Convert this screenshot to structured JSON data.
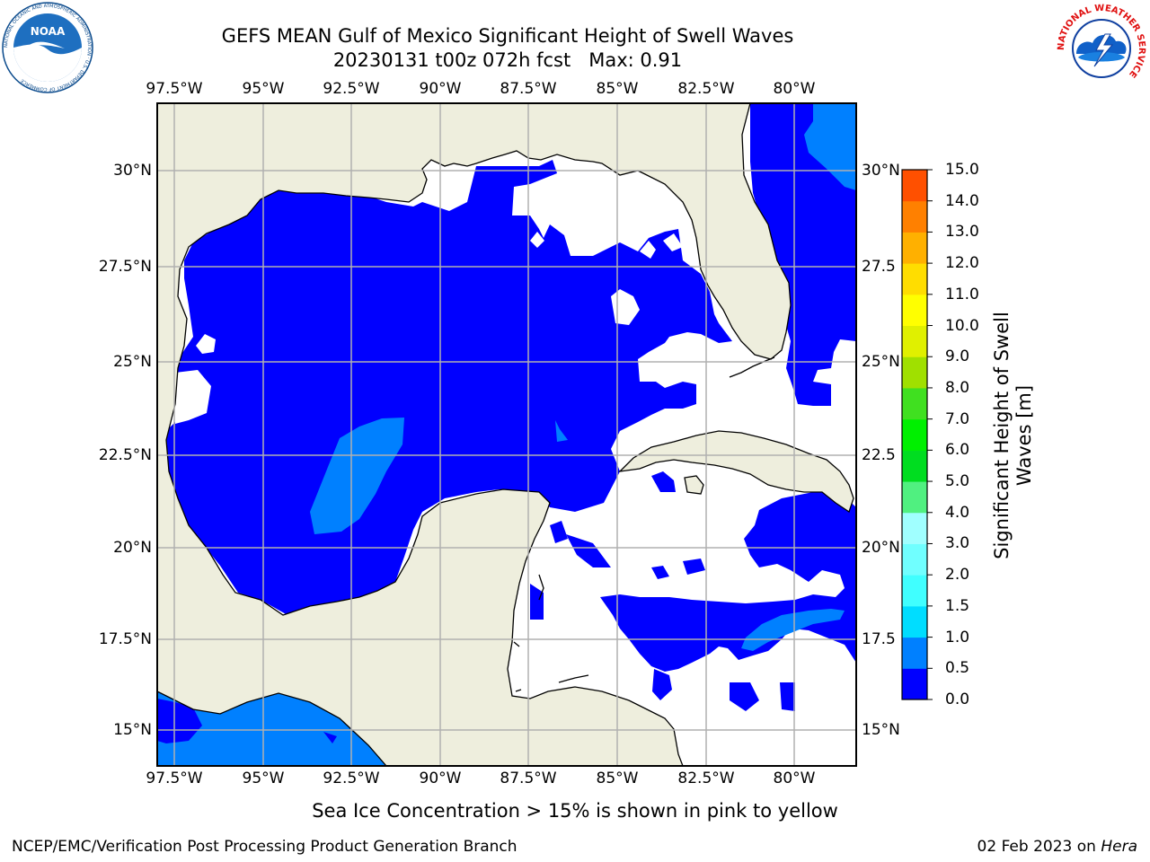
{
  "title": {
    "line1": "GEFS MEAN Gulf of Mexico Significant Height of Swell Waves",
    "line2": "20230131 t00z 072h fcst   Max: 0.91"
  },
  "map": {
    "lon_labels": [
      "97.5°W",
      "95°W",
      "92.5°W",
      "90°W",
      "87.5°W",
      "85°W",
      "82.5°W",
      "80°W"
    ],
    "lat_labels_left": [
      "30°N",
      "27.5°N",
      "25°N",
      "22.5°N",
      "20°N",
      "17.5°N",
      "15°N"
    ],
    "lat_labels_right": [
      "30°N",
      "27.5",
      "25°N",
      "22.5",
      "20°N",
      "17.5",
      "15°N"
    ],
    "colors": {
      "land": "#eeeedd",
      "ocean_no_data": "#ffffff",
      "swell_0_05": "#0000ff",
      "swell_05_10": "#0080ff",
      "grid": "#b0b0b0"
    }
  },
  "colorbar": {
    "tick_labels": [
      "0.0",
      "0.5",
      "1.0",
      "1.5",
      "2.0",
      "3.0",
      "4.0",
      "5.0",
      "6.0",
      "7.0",
      "8.0",
      "9.0",
      "10.0",
      "11.0",
      "12.0",
      "13.0",
      "14.0",
      "15.0"
    ],
    "colors": [
      "#0000ff",
      "#0080ff",
      "#00ddff",
      "#40ffff",
      "#70ffff",
      "#a0ffff",
      "#50f080",
      "#00dd20",
      "#00f000",
      "#40e020",
      "#a0e000",
      "#e0f000",
      "#ffff00",
      "#ffdd00",
      "#ffb000",
      "#ff8000",
      "#ff5000",
      "#ff2000",
      "#ff0000"
    ],
    "label_line1": "Significant Height of Swell",
    "label_line2": "Waves [m]"
  },
  "ice_note": "Sea Ice Concentration > 15% is shown in pink to yellow",
  "footer": {
    "left": "NCEP/EMC/Verification Post Processing Product Generation Branch",
    "date": "02 Feb 2023 on ",
    "machine": "Hera"
  },
  "logos": {
    "noaa_text": "NOAA",
    "noaa_ring": "NATIONAL OCEANIC AND ATMOSPHERIC ADMINISTRATION · U.S. DEPARTMENT OF COMMERCE",
    "nws_ring": "NATIONAL WEATHER SERVICE"
  }
}
